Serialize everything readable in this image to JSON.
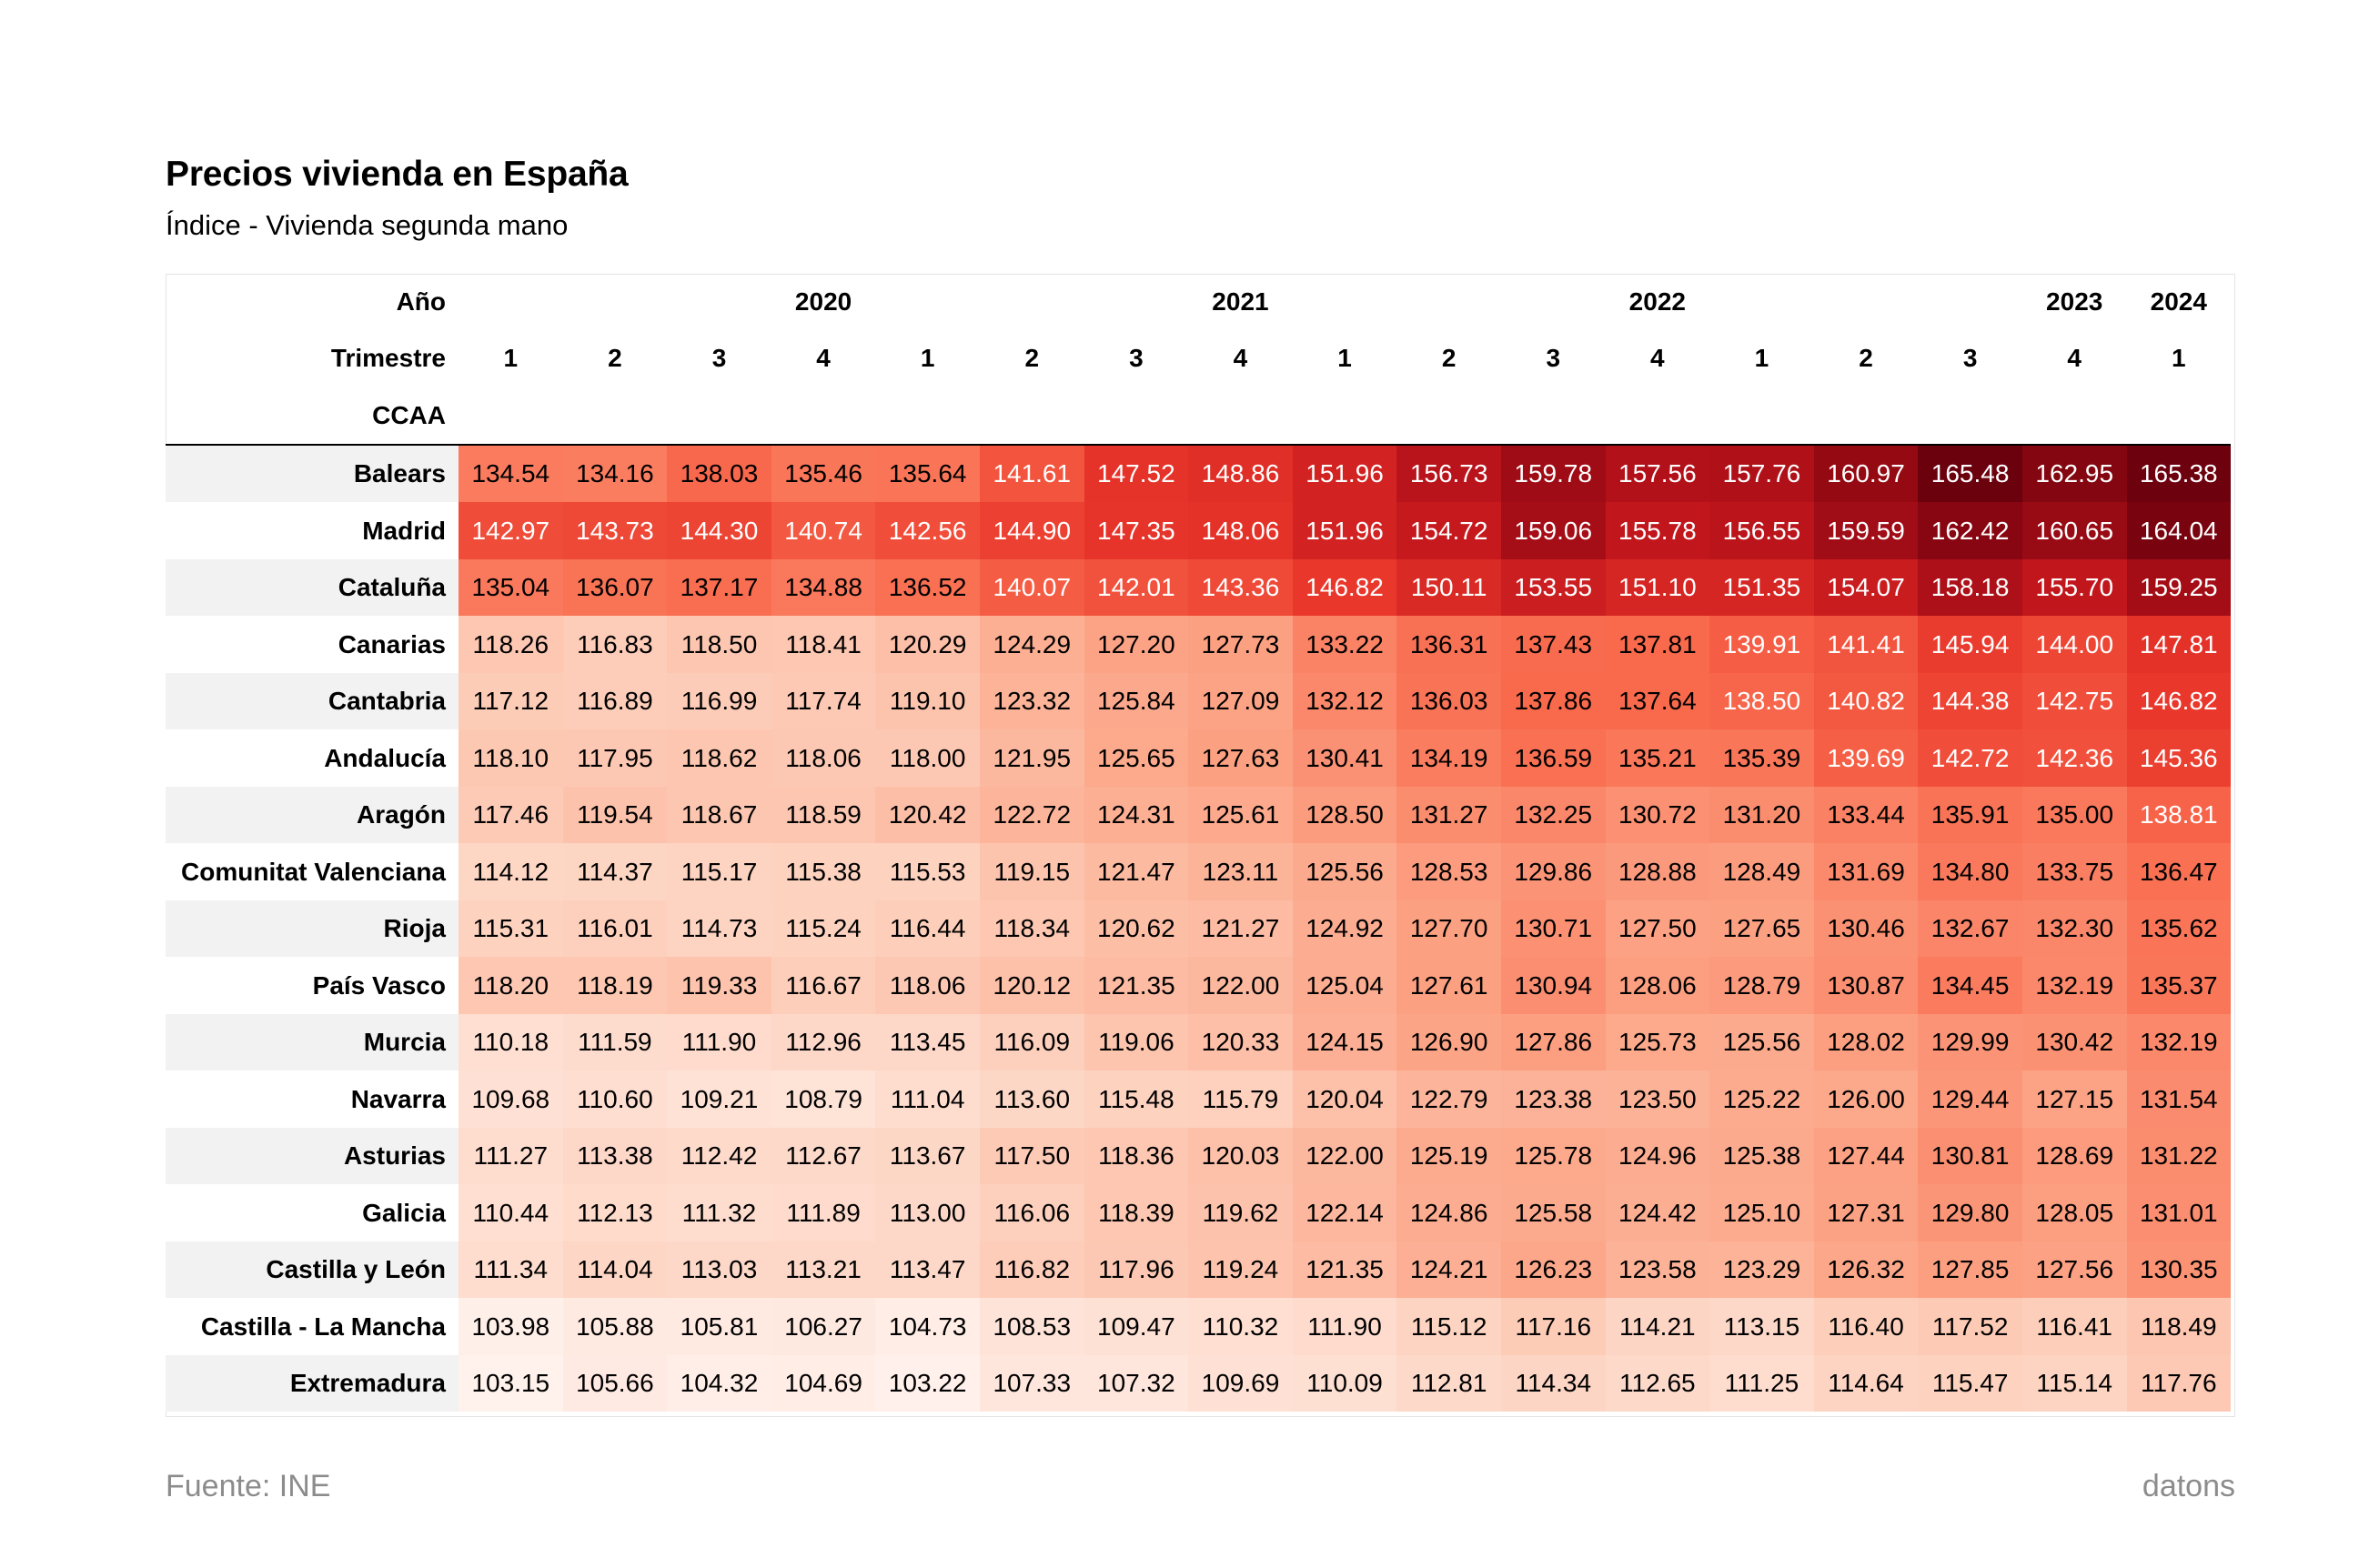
{
  "title": "Precios vivienda en España",
  "subtitle": "Índice - Vivienda segunda mano",
  "footer": {
    "source": "Fuente: INE",
    "brand": "datons"
  },
  "colors": {
    "low": "#fff1ec",
    "mid": "#f24438",
    "high": "#67000d",
    "text_dark": "#000000",
    "text_light": "#ffffff"
  },
  "chart_data": {
    "type": "heatmap",
    "title": "Precios vivienda en España",
    "subtitle": "Índice - Vivienda segunda mano",
    "header_labels": {
      "year": "Año",
      "quarter": "Trimestre",
      "region": "CCAA"
    },
    "year_groups": [
      {
        "label": "2020",
        "span": 4
      },
      {
        "label": "2021",
        "span": 4
      },
      {
        "label": "2022",
        "span": 4
      },
      {
        "label": "2023",
        "span": 4
      },
      {
        "label": "2024",
        "span": 1
      }
    ],
    "quarters": [
      "1",
      "2",
      "3",
      "4",
      "1",
      "2",
      "3",
      "4",
      "1",
      "2",
      "3",
      "4",
      "1",
      "2",
      "3",
      "4",
      "1"
    ],
    "color_range": [
      103,
      166
    ],
    "rows": [
      {
        "region": "Balears",
        "values": [
          "134.54",
          "134.16",
          "138.03",
          "135.46",
          "135.64",
          "141.61",
          "147.52",
          "148.86",
          "151.96",
          "156.73",
          "159.78",
          "157.56",
          "157.76",
          "160.97",
          "165.48",
          "162.95",
          "165.38"
        ]
      },
      {
        "region": "Madrid",
        "values": [
          "142.97",
          "143.73",
          "144.30",
          "140.74",
          "142.56",
          "144.90",
          "147.35",
          "148.06",
          "151.96",
          "154.72",
          "159.06",
          "155.78",
          "156.55",
          "159.59",
          "162.42",
          "160.65",
          "164.04"
        ]
      },
      {
        "region": "Cataluña",
        "values": [
          "135.04",
          "136.07",
          "137.17",
          "134.88",
          "136.52",
          "140.07",
          "142.01",
          "143.36",
          "146.82",
          "150.11",
          "153.55",
          "151.10",
          "151.35",
          "154.07",
          "158.18",
          "155.70",
          "159.25"
        ]
      },
      {
        "region": "Canarias",
        "values": [
          "118.26",
          "116.83",
          "118.50",
          "118.41",
          "120.29",
          "124.29",
          "127.20",
          "127.73",
          "133.22",
          "136.31",
          "137.43",
          "137.81",
          "139.91",
          "141.41",
          "145.94",
          "144.00",
          "147.81"
        ]
      },
      {
        "region": "Cantabria",
        "values": [
          "117.12",
          "116.89",
          "116.99",
          "117.74",
          "119.10",
          "123.32",
          "125.84",
          "127.09",
          "132.12",
          "136.03",
          "137.86",
          "137.64",
          "138.50",
          "140.82",
          "144.38",
          "142.75",
          "146.82"
        ]
      },
      {
        "region": "Andalucía",
        "values": [
          "118.10",
          "117.95",
          "118.62",
          "118.06",
          "118.00",
          "121.95",
          "125.65",
          "127.63",
          "130.41",
          "134.19",
          "136.59",
          "135.21",
          "135.39",
          "139.69",
          "142.72",
          "142.36",
          "145.36"
        ]
      },
      {
        "region": "Aragón",
        "values": [
          "117.46",
          "119.54",
          "118.67",
          "118.59",
          "120.42",
          "122.72",
          "124.31",
          "125.61",
          "128.50",
          "131.27",
          "132.25",
          "130.72",
          "131.20",
          "133.44",
          "135.91",
          "135.00",
          "138.81"
        ]
      },
      {
        "region": "Comunitat Valenciana",
        "values": [
          "114.12",
          "114.37",
          "115.17",
          "115.38",
          "115.53",
          "119.15",
          "121.47",
          "123.11",
          "125.56",
          "128.53",
          "129.86",
          "128.88",
          "128.49",
          "131.69",
          "134.80",
          "133.75",
          "136.47"
        ]
      },
      {
        "region": "Rioja",
        "values": [
          "115.31",
          "116.01",
          "114.73",
          "115.24",
          "116.44",
          "118.34",
          "120.62",
          "121.27",
          "124.92",
          "127.70",
          "130.71",
          "127.50",
          "127.65",
          "130.46",
          "132.67",
          "132.30",
          "135.62"
        ]
      },
      {
        "region": "País Vasco",
        "values": [
          "118.20",
          "118.19",
          "119.33",
          "116.67",
          "118.06",
          "120.12",
          "121.35",
          "122.00",
          "125.04",
          "127.61",
          "130.94",
          "128.06",
          "128.79",
          "130.87",
          "134.45",
          "132.19",
          "135.37"
        ]
      },
      {
        "region": "Murcia",
        "values": [
          "110.18",
          "111.59",
          "111.90",
          "112.96",
          "113.45",
          "116.09",
          "119.06",
          "120.33",
          "124.15",
          "126.90",
          "127.86",
          "125.73",
          "125.56",
          "128.02",
          "129.99",
          "130.42",
          "132.19"
        ]
      },
      {
        "region": "Navarra",
        "values": [
          "109.68",
          "110.60",
          "109.21",
          "108.79",
          "111.04",
          "113.60",
          "115.48",
          "115.79",
          "120.04",
          "122.79",
          "123.38",
          "123.50",
          "125.22",
          "126.00",
          "129.44",
          "127.15",
          "131.54"
        ]
      },
      {
        "region": "Asturias",
        "values": [
          "111.27",
          "113.38",
          "112.42",
          "112.67",
          "113.67",
          "117.50",
          "118.36",
          "120.03",
          "122.00",
          "125.19",
          "125.78",
          "124.96",
          "125.38",
          "127.44",
          "130.81",
          "128.69",
          "131.22"
        ]
      },
      {
        "region": "Galicia",
        "values": [
          "110.44",
          "112.13",
          "111.32",
          "111.89",
          "113.00",
          "116.06",
          "118.39",
          "119.62",
          "122.14",
          "124.86",
          "125.58",
          "124.42",
          "125.10",
          "127.31",
          "129.80",
          "128.05",
          "131.01"
        ]
      },
      {
        "region": "Castilla y León",
        "values": [
          "111.34",
          "114.04",
          "113.03",
          "113.21",
          "113.47",
          "116.82",
          "117.96",
          "119.24",
          "121.35",
          "124.21",
          "126.23",
          "123.58",
          "123.29",
          "126.32",
          "127.85",
          "127.56",
          "130.35"
        ]
      },
      {
        "region": "Castilla - La Mancha",
        "values": [
          "103.98",
          "105.88",
          "105.81",
          "106.27",
          "104.73",
          "108.53",
          "109.47",
          "110.32",
          "111.90",
          "115.12",
          "117.16",
          "114.21",
          "113.15",
          "116.40",
          "117.52",
          "116.41",
          "118.49"
        ]
      },
      {
        "region": "Extremadura",
        "values": [
          "103.15",
          "105.66",
          "104.32",
          "104.69",
          "103.22",
          "107.33",
          "107.32",
          "109.69",
          "110.09",
          "112.81",
          "114.34",
          "112.65",
          "111.25",
          "114.64",
          "115.47",
          "115.14",
          "117.76"
        ]
      }
    ]
  }
}
